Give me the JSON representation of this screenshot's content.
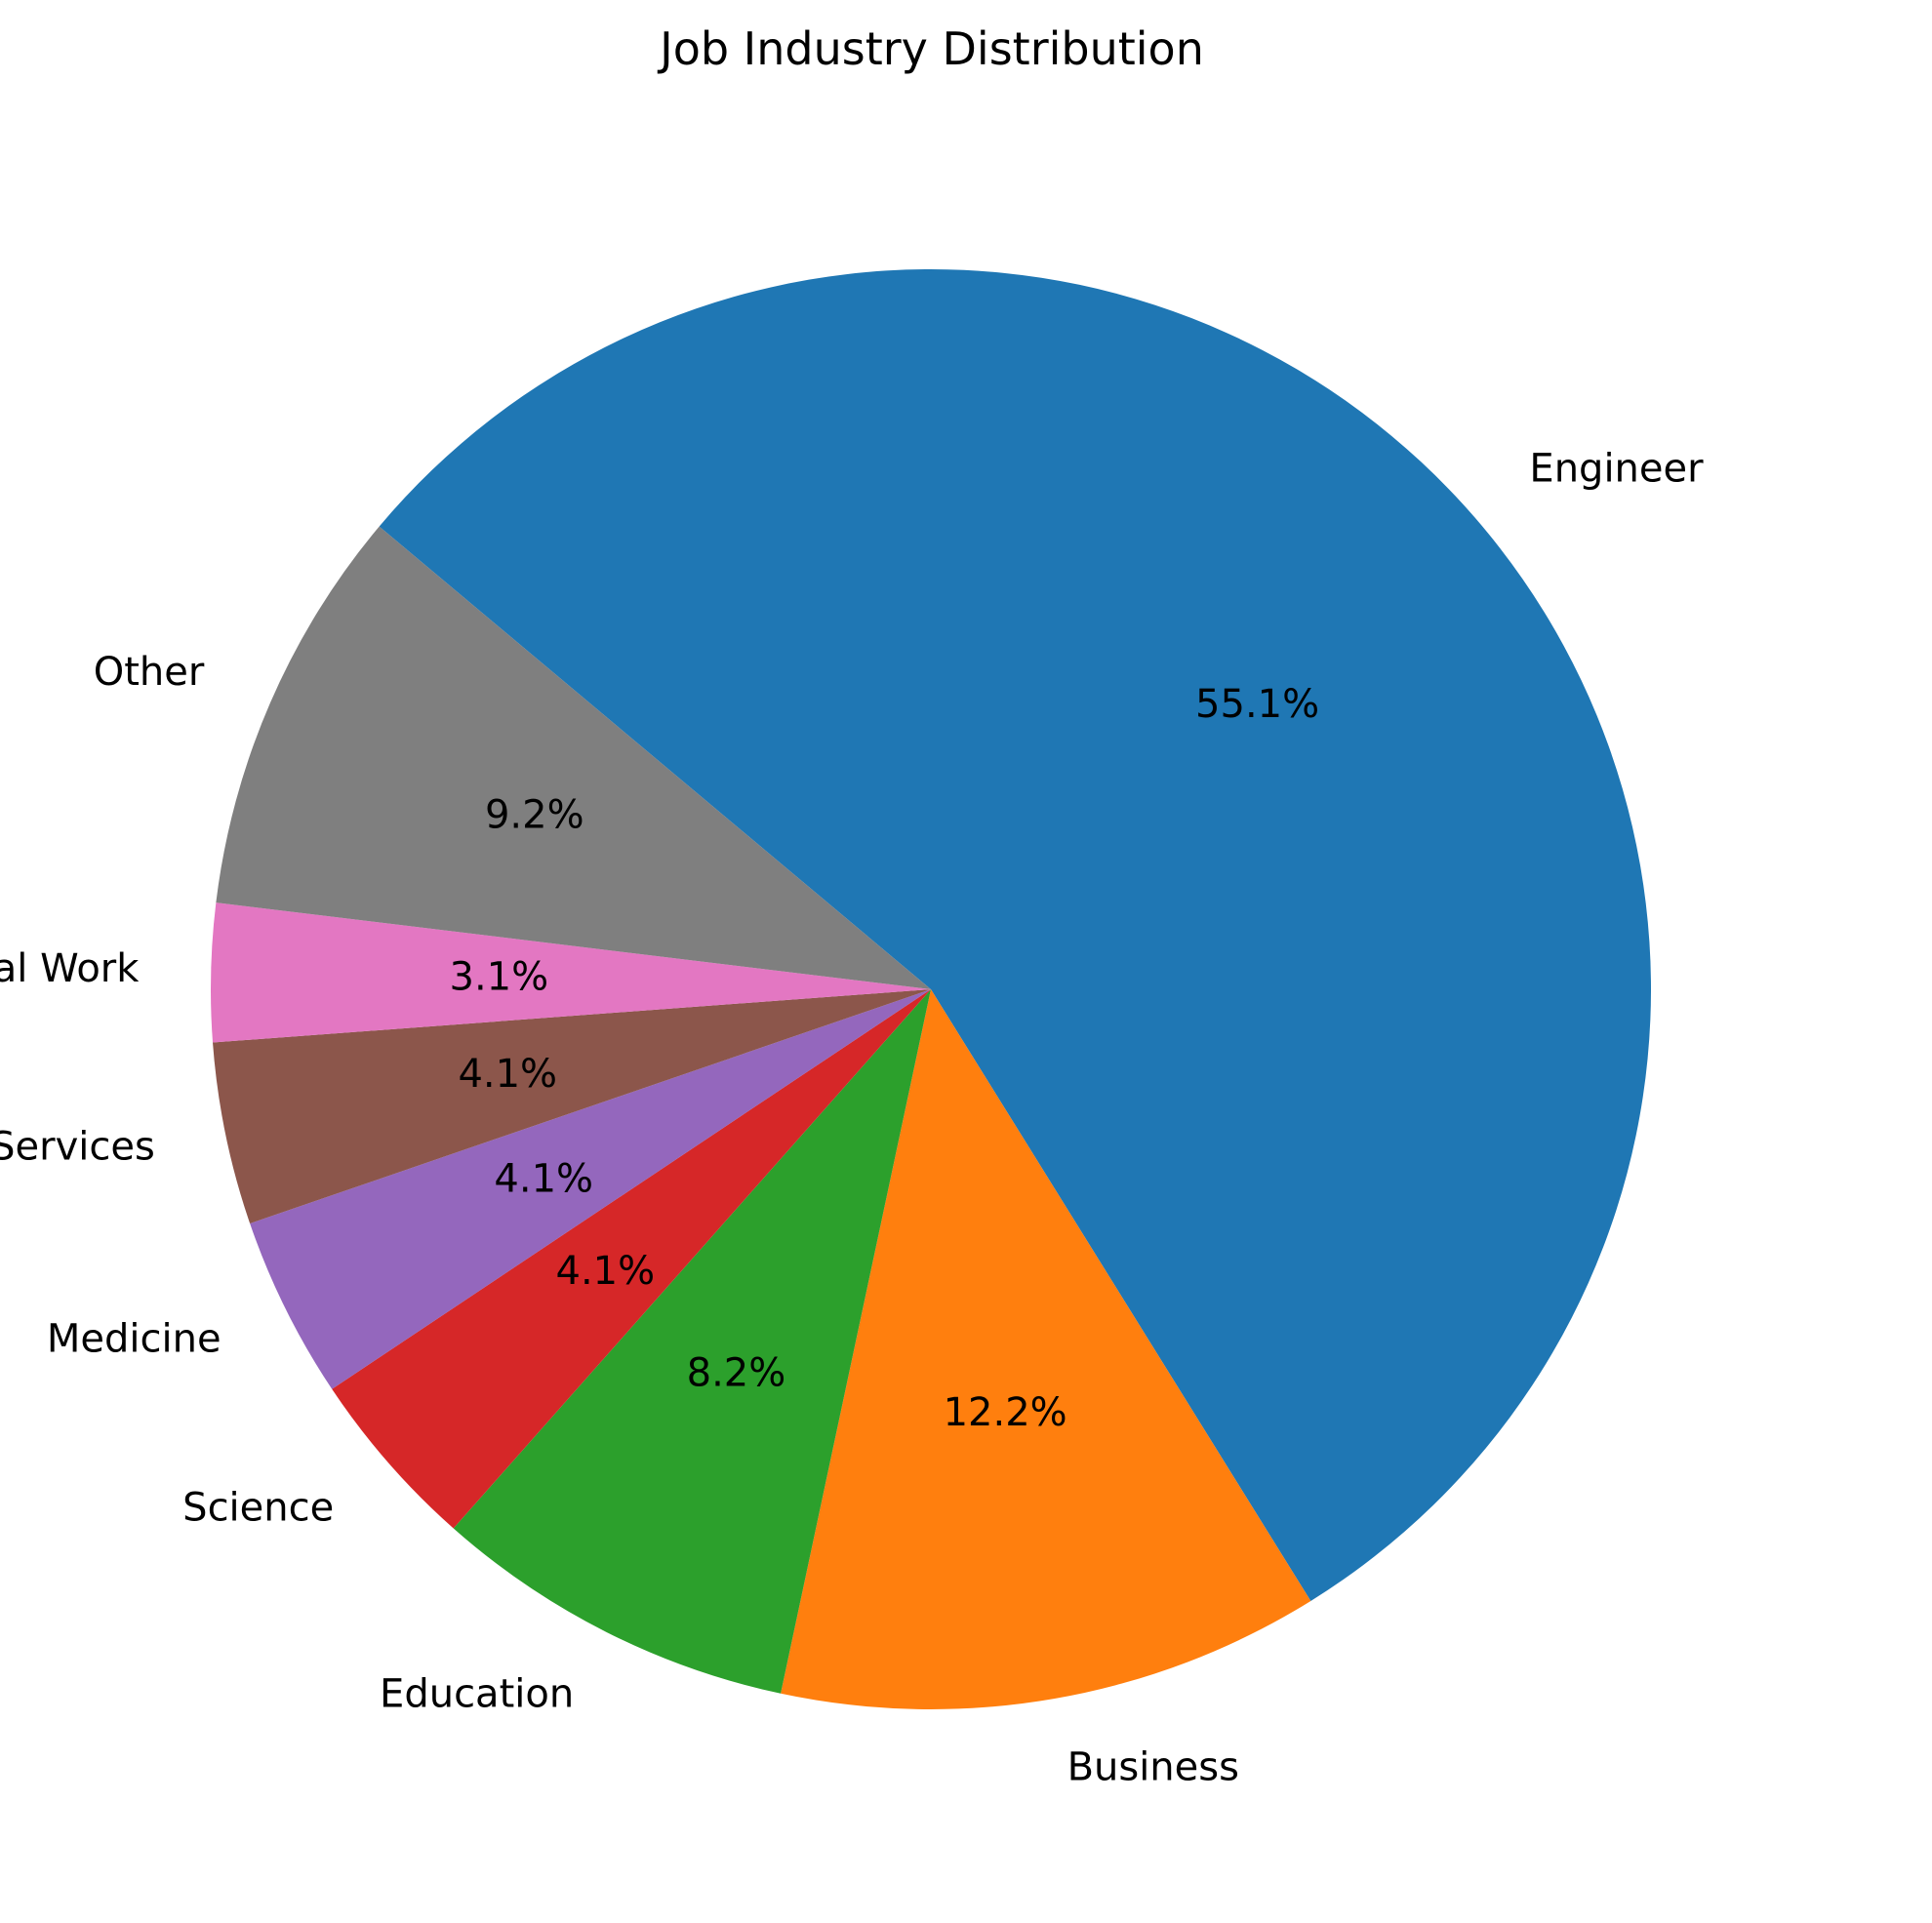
{
  "chart_data": {
    "type": "pie",
    "title": "Job Industry Distribution",
    "categories": [
      "Engineer",
      "Business",
      "Education",
      "Science",
      "Medicine",
      "Public Services",
      "Social Work",
      "Other"
    ],
    "values": [
      55.1,
      12.2,
      8.2,
      4.1,
      4.1,
      4.1,
      3.1,
      9.2
    ],
    "pct_labels": [
      "55.1%",
      "12.2%",
      "8.2%",
      "4.1%",
      "4.1%",
      "4.1%",
      "3.1%",
      "9.2%"
    ],
    "colors": [
      "#1f77b4",
      "#ff7f0e",
      "#2ca02c",
      "#d62728",
      "#9467bd",
      "#8c564b",
      "#e377c2",
      "#7f7f7f"
    ],
    "start_angle_deg": 140,
    "direction": "clockwise",
    "legend": "none"
  }
}
